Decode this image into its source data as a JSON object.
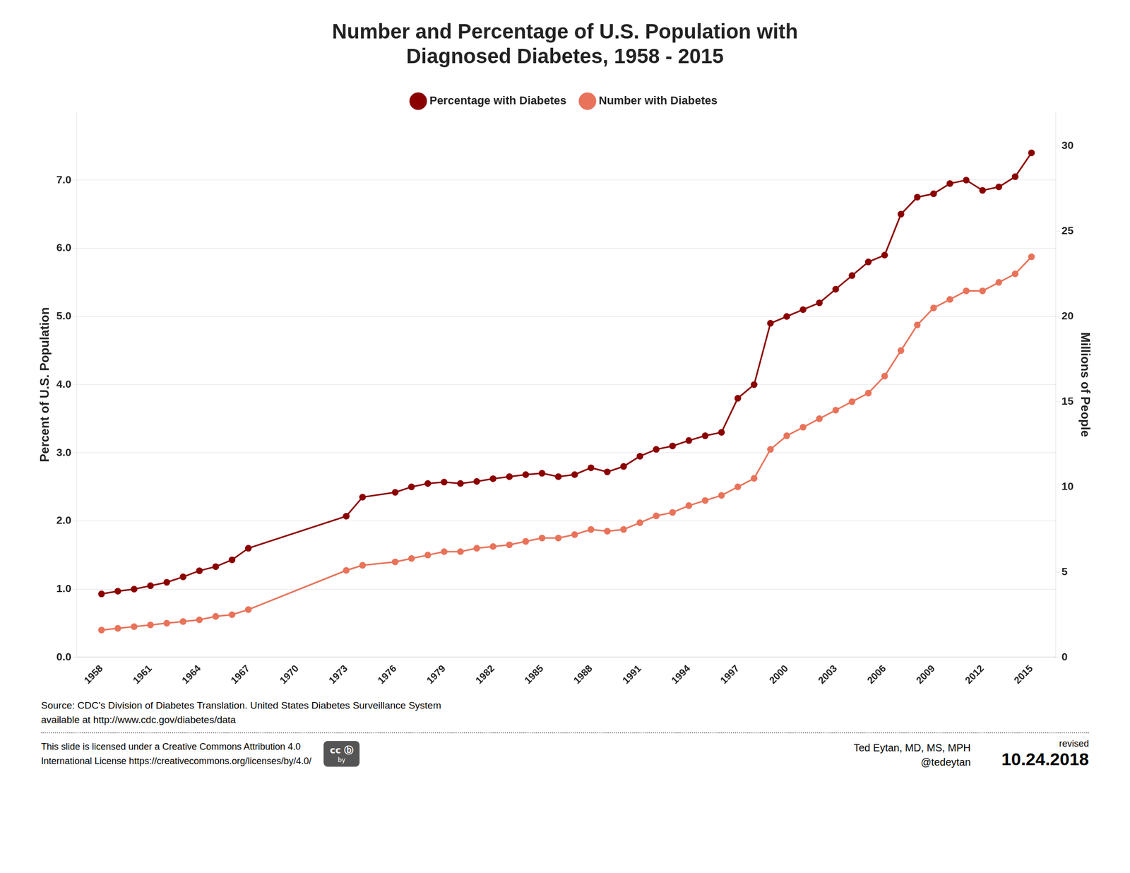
{
  "chart_data": {
    "type": "line",
    "title": "Number and Percentage of U.S. Population with\nDiagnosed Diabetes, 1958 - 2015",
    "ylabel": "Percent of U.S. Population",
    "y2label": "Millions of People",
    "x": [
      1958,
      1959,
      1960,
      1961,
      1962,
      1963,
      1964,
      1965,
      1966,
      1967,
      1973,
      1974,
      1976,
      1977,
      1978,
      1979,
      1980,
      1981,
      1982,
      1983,
      1984,
      1985,
      1986,
      1987,
      1988,
      1989,
      1990,
      1991,
      1992,
      1993,
      1994,
      1995,
      1996,
      1997,
      1998,
      1999,
      2000,
      2001,
      2002,
      2003,
      2004,
      2005,
      2006,
      2007,
      2008,
      2009,
      2010,
      2011,
      2012,
      2013,
      2014,
      2015
    ],
    "series": [
      {
        "name": "Percentage with Diabetes",
        "color": "#8B0000",
        "axis": "y",
        "values": [
          0.93,
          0.97,
          1.0,
          1.05,
          1.1,
          1.18,
          1.27,
          1.33,
          1.43,
          1.6,
          2.07,
          2.35,
          2.42,
          2.5,
          2.55,
          2.57,
          2.55,
          2.58,
          2.62,
          2.65,
          2.68,
          2.7,
          2.65,
          2.68,
          2.78,
          2.72,
          2.8,
          2.95,
          3.05,
          3.1,
          3.18,
          3.25,
          3.3,
          3.8,
          4.0,
          4.9,
          5.0,
          5.1,
          5.2,
          5.4,
          5.6,
          5.8,
          5.9,
          6.5,
          6.75,
          6.8,
          6.95,
          7.0,
          6.85,
          6.9,
          7.05,
          7.4
        ]
      },
      {
        "name": "Number with Diabetes",
        "color": "#E8735A",
        "axis": "y2",
        "values": [
          1.6,
          1.7,
          1.8,
          1.9,
          2.0,
          2.1,
          2.2,
          2.4,
          2.5,
          2.8,
          5.1,
          5.4,
          5.6,
          5.8,
          6.0,
          6.2,
          6.2,
          6.4,
          6.5,
          6.6,
          6.8,
          7.0,
          7.0,
          7.2,
          7.5,
          7.4,
          7.5,
          7.9,
          8.3,
          8.5,
          8.9,
          9.2,
          9.5,
          10.0,
          10.5,
          12.2,
          13.0,
          13.5,
          14.0,
          14.5,
          15.0,
          15.5,
          16.5,
          18.0,
          19.5,
          20.5,
          21.0,
          21.5,
          21.5,
          22.0,
          22.5,
          23.5
        ]
      }
    ],
    "xlim": [
      1956.5,
      2016.5
    ],
    "xticks": [
      1958,
      1961,
      1964,
      1967,
      1970,
      1973,
      1976,
      1979,
      1982,
      1985,
      1988,
      1991,
      1994,
      1997,
      2000,
      2003,
      2006,
      2009,
      2012,
      2015
    ],
    "ylim": [
      0,
      8.0
    ],
    "yticks": [
      {
        "value": 0,
        "label": "0.0"
      },
      {
        "value": 1,
        "label": "1.0"
      },
      {
        "value": 2,
        "label": "2.0"
      },
      {
        "value": 3,
        "label": "3.0"
      },
      {
        "value": 4,
        "label": "4.0"
      },
      {
        "value": 5,
        "label": "5.0"
      },
      {
        "value": 6,
        "label": "6.0"
      },
      {
        "value": 7,
        "label": "7.0"
      }
    ],
    "y2lim": [
      0,
      32
    ],
    "y2ticks": [
      0,
      5,
      10,
      15,
      20,
      25,
      30
    ],
    "grid": true,
    "legend": "top",
    "marker": "circle",
    "line_style": "solid",
    "annotations": [
      "Source: CDC's Division of Diabetes Translation. United States Diabetes Surveillance System",
      "available at http://www.cdc.gov/diabetes/data",
      "This slide is licensed under a  Creative Commons Attribution 4.0",
      "International License https://creativecommons.org/licenses/by/4.0/",
      "cc",
      "ⓑ",
      "by",
      "Ted Eytan, MD, MS, MPH",
      "@tedeytan",
      "revised",
      "10.24.2018"
    ]
  }
}
